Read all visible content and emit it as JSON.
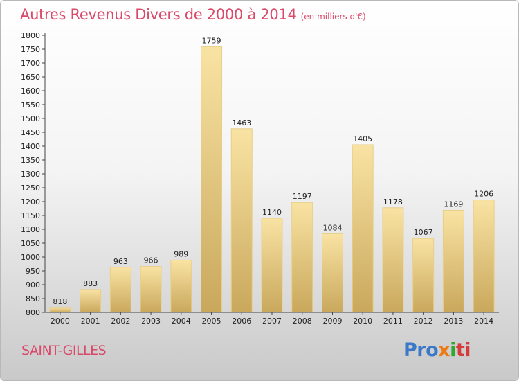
{
  "header": {
    "title": "Autres Revenus Divers de 2000 à 2014",
    "subtitle": "(en milliers d'€)"
  },
  "footer": {
    "commune": "SAINT-GILLES",
    "logo_parts": [
      "Pro",
      "x",
      "i",
      "ti"
    ]
  },
  "chart_data": {
    "type": "bar",
    "title": "Autres Revenus Divers de 2000 à 2014",
    "subtitle": "(en milliers d'€)",
    "xlabel": "",
    "ylabel": "",
    "categories": [
      "2000",
      "2001",
      "2002",
      "2003",
      "2004",
      "2005",
      "2006",
      "2007",
      "2008",
      "2009",
      "2010",
      "2011",
      "2012",
      "2013",
      "2014"
    ],
    "values": [
      818,
      883,
      963,
      966,
      989,
      1759,
      1463,
      1140,
      1197,
      1084,
      1405,
      1178,
      1067,
      1169,
      1206
    ],
    "ylim": [
      800,
      1800
    ],
    "ytick_step": 50,
    "grid": false,
    "legend": "none",
    "colors": {
      "bar_light": "#f9e3a3",
      "bar_dark": "#c9a85c",
      "bar_stroke": "#e7cf8a",
      "axis": "#444444",
      "text_accent": "#d94a6a"
    }
  }
}
